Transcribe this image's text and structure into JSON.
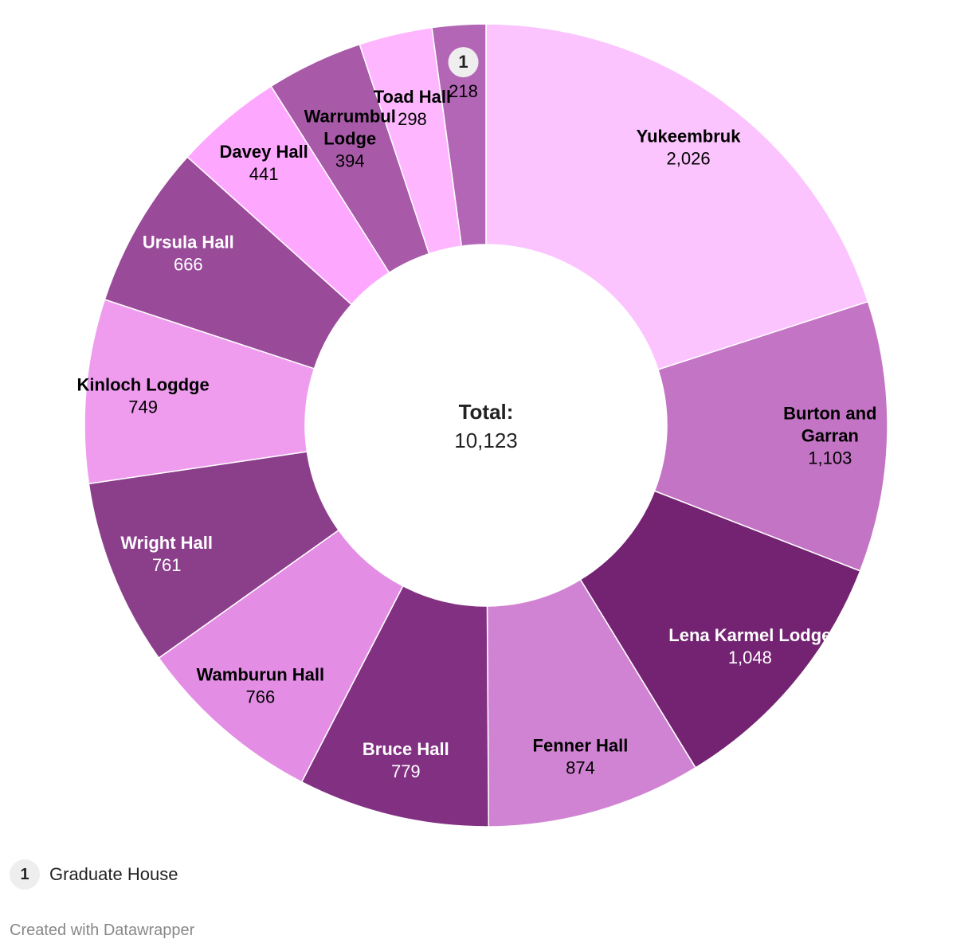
{
  "chart_data": {
    "type": "pie",
    "donut": true,
    "categories": [
      "Yukeembruk",
      "Burton and Garran",
      "Lena Karmel Lodge",
      "Fenner Hall",
      "Bruce Hall",
      "Wamburun Hall",
      "Wright Hall",
      "Kinloch Logdge",
      "Ursula Hall",
      "Davey Hall",
      "Warrumbul Lodge",
      "Toad Hall",
      "1"
    ],
    "values": [
      2026,
      1103,
      1048,
      874,
      779,
      766,
      761,
      749,
      666,
      441,
      394,
      298,
      218
    ],
    "colors": [
      "#fcc4fe",
      "#c474c4",
      "#732371",
      "#d183d3",
      "#823182",
      "#e38ee4",
      "#8b3f8b",
      "#ef9cef",
      "#994a99",
      "#fea7fe",
      "#a85aa8",
      "#feb7fe",
      "#b366b5"
    ],
    "label_colors": [
      "#000000",
      "#000000",
      "#ffffff",
      "#000000",
      "#ffffff",
      "#000000",
      "#ffffff",
      "#000000",
      "#ffffff",
      "#000000",
      "#000000",
      "#000000",
      "#000000"
    ],
    "value_labels": [
      "2,026",
      "1,103",
      "1,048",
      "874",
      "779",
      "766",
      "761",
      "749",
      "666",
      "441",
      "394",
      "298",
      "218"
    ],
    "center": {
      "label": "Total:",
      "value": "10,123"
    }
  },
  "legend": {
    "number": "1",
    "text": "Graduate House"
  },
  "footer": {
    "credit": "Created with Datawrapper"
  }
}
